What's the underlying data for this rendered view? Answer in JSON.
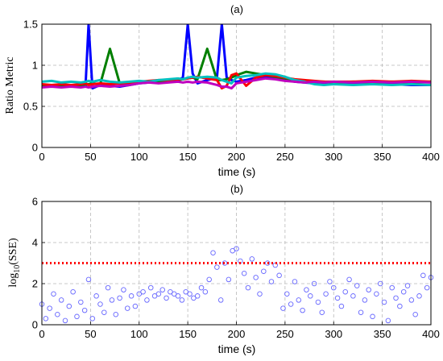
{
  "chart_data": [
    {
      "panel_label": "(a)",
      "type": "line",
      "xlabel": "time (s)",
      "ylabel": "Ratio Metric",
      "xlim": [
        0,
        400
      ],
      "ylim": [
        0,
        1.5
      ],
      "xticks": [
        0,
        50,
        100,
        150,
        200,
        250,
        300,
        350,
        400
      ],
      "yticks": [
        0,
        0.5,
        1,
        1.5
      ],
      "ytick_labels": [
        "0",
        "0.5",
        "1",
        "1.5"
      ],
      "grid": "dashed",
      "x": [
        0,
        10,
        20,
        30,
        40,
        45,
        48,
        52,
        60,
        70,
        80,
        90,
        100,
        110,
        120,
        130,
        140,
        145,
        150,
        155,
        160,
        170,
        180,
        185,
        190,
        195,
        200,
        210,
        220,
        230,
        240,
        250,
        260,
        270,
        280,
        290,
        300,
        320,
        340,
        360,
        380,
        400
      ],
      "series": [
        {
          "color": "#0000ff",
          "values": [
            0.76,
            0.75,
            0.76,
            0.74,
            0.75,
            0.78,
            1.5,
            0.72,
            0.76,
            0.75,
            0.74,
            0.76,
            0.78,
            0.79,
            0.8,
            0.8,
            0.82,
            0.85,
            1.5,
            0.9,
            0.78,
            0.82,
            0.85,
            1.5,
            0.85,
            0.82,
            0.8,
            0.82,
            0.85,
            0.86,
            0.84,
            0.83,
            0.8,
            0.79,
            0.78,
            0.77,
            0.78,
            0.77,
            0.78,
            0.77,
            0.76,
            0.76
          ]
        },
        {
          "color": "#007f00",
          "values": [
            0.74,
            0.75,
            0.74,
            0.76,
            0.75,
            0.76,
            0.77,
            0.78,
            0.77,
            1.2,
            0.78,
            0.77,
            0.79,
            0.8,
            0.8,
            0.81,
            0.82,
            0.83,
            0.84,
            0.85,
            0.83,
            1.2,
            0.82,
            0.82,
            0.83,
            0.85,
            0.88,
            0.92,
            0.9,
            0.88,
            0.86,
            0.84,
            0.82,
            0.81,
            0.8,
            0.8,
            0.79,
            0.8,
            0.79,
            0.8,
            0.79,
            0.8
          ]
        },
        {
          "color": "#ff0000",
          "values": [
            0.77,
            0.76,
            0.77,
            0.76,
            0.77,
            0.78,
            0.76,
            0.77,
            0.78,
            0.77,
            0.78,
            0.79,
            0.8,
            0.81,
            0.82,
            0.82,
            0.83,
            0.83,
            0.84,
            0.85,
            0.86,
            0.84,
            0.82,
            0.72,
            0.75,
            0.88,
            0.9,
            0.75,
            0.85,
            0.88,
            0.87,
            0.85,
            0.83,
            0.82,
            0.81,
            0.8,
            0.8,
            0.8,
            0.81,
            0.8,
            0.81,
            0.8
          ]
        },
        {
          "color": "#00bfbf",
          "values": [
            0.8,
            0.81,
            0.79,
            0.8,
            0.79,
            0.8,
            0.81,
            0.8,
            0.82,
            0.8,
            0.79,
            0.8,
            0.81,
            0.8,
            0.82,
            0.83,
            0.84,
            0.83,
            0.85,
            0.86,
            0.85,
            0.86,
            0.85,
            0.82,
            0.8,
            0.78,
            0.85,
            0.87,
            0.88,
            0.9,
            0.89,
            0.86,
            0.82,
            0.8,
            0.77,
            0.76,
            0.77,
            0.76,
            0.77,
            0.76,
            0.77,
            0.76
          ]
        },
        {
          "color": "#bf00bf",
          "values": [
            0.73,
            0.74,
            0.73,
            0.74,
            0.73,
            0.74,
            0.73,
            0.74,
            0.75,
            0.74,
            0.75,
            0.76,
            0.78,
            0.79,
            0.78,
            0.79,
            0.8,
            0.79,
            0.8,
            0.79,
            0.8,
            0.79,
            0.76,
            0.74,
            0.74,
            0.72,
            0.78,
            0.8,
            0.82,
            0.84,
            0.83,
            0.81,
            0.8,
            0.79,
            0.8,
            0.79,
            0.8,
            0.79,
            0.8,
            0.79,
            0.8,
            0.79
          ]
        }
      ]
    },
    {
      "panel_label": "(b)",
      "type": "scatter",
      "xlabel": "time (s)",
      "ylabel_prefix": "log",
      "ylabel_sub": "10",
      "ylabel_suffix": "(SSE)",
      "xlim": [
        0,
        400
      ],
      "ylim": [
        0,
        6
      ],
      "xticks": [
        0,
        50,
        100,
        150,
        200,
        250,
        300,
        350,
        400
      ],
      "yticks": [
        0,
        2,
        4,
        6
      ],
      "grid": "dashed",
      "threshold": 3.0,
      "threshold_color": "#ff0000",
      "marker_color": "#6666ff",
      "x": [
        0,
        4,
        8,
        12,
        16,
        20,
        24,
        28,
        32,
        36,
        40,
        44,
        48,
        52,
        56,
        60,
        64,
        68,
        72,
        76,
        80,
        84,
        88,
        92,
        96,
        100,
        104,
        108,
        112,
        116,
        120,
        124,
        128,
        132,
        136,
        140,
        144,
        148,
        152,
        156,
        160,
        164,
        168,
        172,
        176,
        180,
        184,
        188,
        192,
        196,
        200,
        204,
        208,
        212,
        216,
        220,
        224,
        228,
        232,
        236,
        240,
        244,
        248,
        252,
        256,
        260,
        264,
        268,
        272,
        276,
        280,
        284,
        288,
        292,
        296,
        300,
        304,
        308,
        312,
        316,
        320,
        324,
        328,
        332,
        336,
        340,
        344,
        348,
        352,
        356,
        360,
        364,
        368,
        372,
        376,
        380,
        384,
        388,
        392,
        396,
        400
      ],
      "values": [
        1.0,
        0.3,
        0.8,
        1.5,
        0.5,
        1.2,
        0.2,
        0.9,
        1.6,
        0.4,
        1.1,
        0.7,
        2.2,
        0.3,
        1.4,
        1.0,
        0.6,
        1.8,
        1.2,
        0.5,
        1.3,
        1.7,
        0.8,
        1.4,
        0.9,
        1.5,
        1.6,
        1.2,
        1.8,
        1.4,
        1.5,
        1.7,
        1.3,
        1.6,
        1.5,
        1.4,
        1.2,
        1.6,
        1.5,
        1.3,
        1.4,
        1.8,
        1.6,
        2.2,
        3.5,
        2.8,
        1.2,
        3.0,
        2.2,
        3.6,
        3.7,
        3.1,
        2.5,
        1.8,
        3.2,
        2.3,
        1.5,
        2.6,
        3.0,
        2.1,
        2.9,
        2.4,
        0.8,
        1.5,
        1.0,
        2.1,
        1.2,
        0.7,
        1.7,
        1.4,
        2.0,
        1.1,
        0.6,
        1.5,
        2.1,
        1.8,
        1.3,
        0.9,
        1.6,
        2.2,
        1.4,
        1.9,
        0.6,
        1.2,
        1.7,
        0.4,
        1.5,
        2.0,
        1.1,
        0.2,
        1.8,
        1.3,
        0.9,
        1.6,
        1.9,
        1.2,
        0.5,
        1.4,
        2.4,
        1.8,
        2.3
      ]
    }
  ]
}
